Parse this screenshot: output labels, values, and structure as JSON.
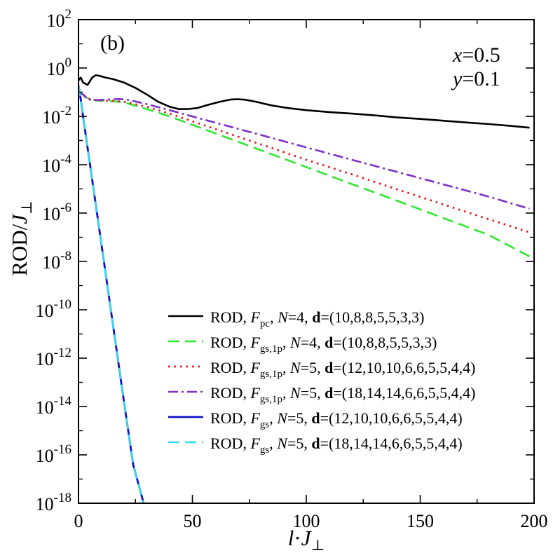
{
  "chart_data": {
    "type": "line",
    "panel_label": "(b)",
    "xlabel_main": "l",
    "xlabel_dot": "·",
    "xlabel_j": "J",
    "xlabel_sub": "⊥",
    "ylabel_main": "ROD/",
    "ylabel_j": "J",
    "ylabel_sub": "⊥",
    "params": [
      {
        "var": "x",
        "eq": "=0.5"
      },
      {
        "var": "y",
        "eq": "=0.1"
      }
    ],
    "xlim": [
      0,
      200
    ],
    "ylim_log10": [
      -18,
      2
    ],
    "y_scale": "log",
    "x_ticks": [
      "0",
      "50",
      "100",
      "150",
      "200"
    ],
    "y_ticks": [
      {
        "base": "10",
        "exp": "2"
      },
      {
        "base": "10",
        "exp": "0"
      },
      {
        "base": "10",
        "exp": "-2"
      },
      {
        "base": "10",
        "exp": "-4"
      },
      {
        "base": "10",
        "exp": "-6"
      },
      {
        "base": "10",
        "exp": "-8"
      },
      {
        "base": "10",
        "exp": "-10"
      },
      {
        "base": "10",
        "exp": "-12"
      },
      {
        "base": "10",
        "exp": "-14"
      },
      {
        "base": "10",
        "exp": "-16"
      },
      {
        "base": "10",
        "exp": "-18"
      }
    ],
    "legend_position": "lower-right",
    "series": [
      {
        "legend": {
          "a": "ROD, ",
          "F": "F",
          "sub": "pc",
          "b": ", ",
          "N": "N",
          "c": "=4, ",
          "d": "d",
          "e": "=(10,8,8,5,5,3,3)"
        },
        "color": "#000000",
        "dash": "",
        "width": 2.6,
        "points": [
          [
            0,
            0.3
          ],
          [
            0.5,
            0.36
          ],
          [
            1,
            0.4
          ],
          [
            2,
            0.25
          ],
          [
            4,
            0.2
          ],
          [
            6,
            0.4
          ],
          [
            7.5,
            0.5
          ],
          [
            9,
            0.48
          ],
          [
            12,
            0.4
          ],
          [
            15,
            0.35
          ],
          [
            20,
            0.25
          ],
          [
            25,
            0.15
          ],
          [
            30,
            0.08
          ],
          [
            35,
            0.04
          ],
          [
            40,
            0.025
          ],
          [
            44,
            0.02
          ],
          [
            48,
            0.02
          ],
          [
            52,
            0.022
          ],
          [
            57,
            0.03
          ],
          [
            62,
            0.04
          ],
          [
            67,
            0.05
          ],
          [
            70,
            0.051
          ],
          [
            73,
            0.049
          ],
          [
            78,
            0.04
          ],
          [
            85,
            0.028
          ],
          [
            92,
            0.022
          ],
          [
            100,
            0.018
          ],
          [
            110,
            0.015
          ],
          [
            120,
            0.013
          ],
          [
            130,
            0.011
          ],
          [
            140,
            0.009
          ],
          [
            150,
            0.0078
          ],
          [
            160,
            0.0066
          ],
          [
            170,
            0.0056
          ],
          [
            180,
            0.0048
          ],
          [
            190,
            0.004
          ],
          [
            198,
            0.0034
          ]
        ]
      },
      {
        "legend": {
          "a": "ROD, ",
          "F": "F",
          "sub": "gs,1p",
          "b": ", ",
          "N": "N",
          "c": "=4, ",
          "d": "d",
          "e": "=(10,8,8,5,5,3,3)"
        },
        "color": "#2ee82e",
        "dash": "16 8",
        "width": 2.6,
        "points": [
          [
            0,
            0.1
          ],
          [
            2,
            0.08
          ],
          [
            4,
            0.055
          ],
          [
            8,
            0.045
          ],
          [
            14,
            0.043
          ],
          [
            20,
            0.038
          ],
          [
            30,
            0.02
          ],
          [
            40,
            0.01
          ],
          [
            60,
            0.002
          ],
          [
            80,
            0.0004
          ],
          [
            100,
            8e-05
          ],
          [
            120,
            1.58e-05
          ],
          [
            140,
            3.2e-06
          ],
          [
            160,
            6.3e-07
          ],
          [
            180,
            1.26e-07
          ],
          [
            198,
            1.6e-08
          ]
        ]
      },
      {
        "legend": {
          "a": "ROD, ",
          "F": "F",
          "sub": "gs,1p",
          "b": ", ",
          "N": "N",
          "c": "=5, ",
          "d": "d",
          "e": "=(12,10,10,6,6,5,5,4,4)"
        },
        "color": "#e8141c",
        "dash": "2.5 6",
        "width": 2.8,
        "points": [
          [
            0,
            0.1
          ],
          [
            2,
            0.08
          ],
          [
            4,
            0.055
          ],
          [
            8,
            0.046
          ],
          [
            14,
            0.044
          ],
          [
            20,
            0.04
          ],
          [
            30,
            0.025
          ],
          [
            40,
            0.013
          ],
          [
            60,
            0.003
          ],
          [
            80,
            0.0007
          ],
          [
            100,
            0.00016
          ],
          [
            120,
            4e-05
          ],
          [
            140,
            9.5e-06
          ],
          [
            160,
            2.3e-06
          ],
          [
            180,
            5.6e-07
          ],
          [
            198,
            1.6e-07
          ]
        ]
      },
      {
        "legend": {
          "a": "ROD, ",
          "F": "F",
          "sub": "gs,1p",
          "b": ", ",
          "N": "N",
          "c": "=5, ",
          "d": "d",
          "e": "=(18,14,14,6,6,5,5,4,4)"
        },
        "color": "#7d2fc6",
        "dash": "14 5 3 5",
        "width": 2.6,
        "points": [
          [
            0,
            0.1
          ],
          [
            2,
            0.08
          ],
          [
            4,
            0.05
          ],
          [
            8,
            0.047
          ],
          [
            14,
            0.05
          ],
          [
            18,
            0.052
          ],
          [
            22,
            0.048
          ],
          [
            30,
            0.032
          ],
          [
            40,
            0.018
          ],
          [
            60,
            0.0055
          ],
          [
            80,
            0.0017
          ],
          [
            100,
            0.00052
          ],
          [
            120,
            0.00016
          ],
          [
            140,
            5e-05
          ],
          [
            160,
            1.55e-05
          ],
          [
            180,
            4.8e-06
          ],
          [
            198,
            1.5e-06
          ]
        ]
      },
      {
        "legend": {
          "a": "ROD, ",
          "F": "F",
          "sub": "gs",
          "b": ", ",
          "N": "N",
          "c": "=5, ",
          "d": "d",
          "e": "=(12,10,10,6,6,5,5,4,4)"
        },
        "color": "#1010c8",
        "dash": "",
        "width": 2.8,
        "points": [
          [
            0,
            0.2
          ],
          [
            1,
            0.05
          ],
          [
            2,
            0.01
          ],
          [
            4,
            0.0005
          ],
          [
            8,
            1.2e-06
          ],
          [
            12,
            2.8e-09
          ],
          [
            16,
            6.5e-12
          ],
          [
            20,
            1.5e-14
          ],
          [
            24,
            4e-17
          ],
          [
            28.6,
            1e-18
          ]
        ]
      },
      {
        "legend": {
          "a": "ROD, ",
          "F": "F",
          "sub": "gs",
          "b": ", ",
          "N": "N",
          "c": "=5, ",
          "d": "d",
          "e": "=(18,14,14,6,6,5,5,4,4)"
        },
        "color": "#3ad6ee",
        "dash": "16 8",
        "width": 2.6,
        "points": [
          [
            0,
            0.2
          ],
          [
            1,
            0.05
          ],
          [
            2,
            0.01
          ],
          [
            4,
            0.0005
          ],
          [
            8,
            1.2e-06
          ],
          [
            12,
            2.8e-09
          ],
          [
            16,
            6.5e-12
          ],
          [
            20,
            1.5e-14
          ],
          [
            24,
            4e-17
          ],
          [
            28.6,
            1e-18
          ]
        ]
      }
    ]
  }
}
